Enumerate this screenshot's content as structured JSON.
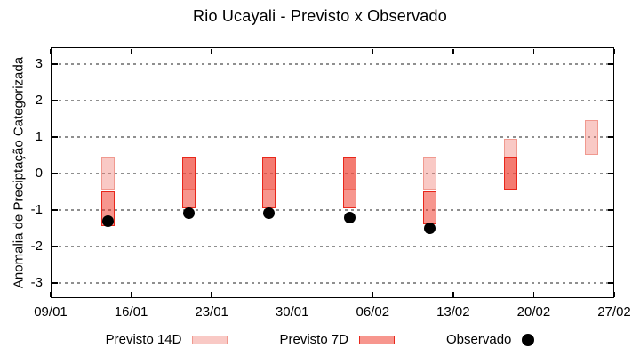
{
  "title": "Rio Ucayali - Previsto x Observado",
  "chart_data": {
    "type": "bar",
    "title": "Rio Ucayali - Previsto x Observado",
    "xlabel": "",
    "ylabel": "Anomalia de Preciptação Categorizada",
    "ylim": [
      -3.42,
      3.46
    ],
    "yticks": [
      3,
      2,
      1,
      0,
      -1,
      -2,
      -3
    ],
    "grid": true,
    "legend_position": "bottom",
    "x_axis": {
      "tick_labels": [
        "09/01",
        "16/01",
        "23/01",
        "30/01",
        "06/02",
        "13/02",
        "20/02",
        "27/02"
      ],
      "tick_days": [
        0,
        7,
        14,
        21,
        28,
        35,
        42,
        49
      ],
      "total_days": 49
    },
    "series": [
      {
        "name": "Previsto 14D",
        "kind": "range-box"
      },
      {
        "name": "Previsto 7D",
        "kind": "range-box"
      },
      {
        "name": "Observado",
        "kind": "point"
      }
    ],
    "points": [
      {
        "date": "14/01",
        "day": 5,
        "previsto_14d": [
          0.45,
          -0.45
        ],
        "previsto_7d": [
          -0.5,
          -1.45
        ],
        "observado": -1.3
      },
      {
        "date": "21/01",
        "day": 12,
        "previsto_14d": [
          0.45,
          -0.45
        ],
        "previsto_7d": [
          0.45,
          -0.95
        ],
        "observado": -1.1
      },
      {
        "date": "28/01",
        "day": 19,
        "previsto_14d": [
          0.45,
          -0.45
        ],
        "previsto_7d": [
          0.45,
          -0.95
        ],
        "observado": -1.1
      },
      {
        "date": "04/02",
        "day": 26,
        "previsto_14d": [
          0.45,
          -0.45
        ],
        "previsto_7d": [
          0.45,
          -0.95
        ],
        "observado": -1.2
      },
      {
        "date": "11/02",
        "day": 33,
        "previsto_14d": [
          0.45,
          -0.45
        ],
        "previsto_7d": [
          -0.5,
          -1.4
        ],
        "observado": -1.5
      },
      {
        "date": "18/02",
        "day": 40,
        "previsto_14d": [
          0.95,
          -0.45
        ],
        "previsto_7d": [
          0.45,
          -0.45
        ],
        "observado": null
      },
      {
        "date": "25/02",
        "day": 47,
        "previsto_14d": [
          1.45,
          0.5
        ],
        "previsto_7d": null,
        "observado": null
      }
    ],
    "colors": {
      "previsto_14d_fill": "rgba(240,120,110,0.4)",
      "previsto_14d_border": "#f0998f",
      "previsto_7d_fill": "rgba(240,45,30,0.5)",
      "previsto_7d_border": "#e8271b",
      "observado": "#000000",
      "gridline": "#8f8f8f",
      "axis": "#000000"
    }
  },
  "legend": {
    "items": [
      {
        "label": "Previsto 14D",
        "swatch": "previsto-14d"
      },
      {
        "label": "Previsto 7D",
        "swatch": "previsto-7d"
      },
      {
        "label": "Observado",
        "swatch": "observado"
      }
    ]
  }
}
